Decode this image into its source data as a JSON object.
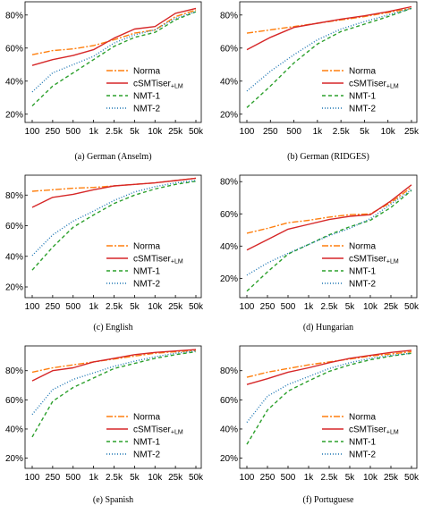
{
  "styles": {
    "Norma": {
      "color": "#ff7f0e",
      "dash": "7 2 2 2",
      "width": 1.4
    },
    "cSMTiser": {
      "color": "#d62728",
      "dash": "",
      "width": 1.4
    },
    "NMT-1": {
      "color": "#2ca02c",
      "dash": "4 3",
      "width": 1.4
    },
    "NMT-2": {
      "color": "#1f77b4",
      "dash": "1 2",
      "width": 1.4
    }
  },
  "chart_data": [
    {
      "type": "line",
      "caption": "(a) German (Anselm)",
      "x": [
        "100",
        "250",
        "500",
        "1k",
        "2.5k",
        "5k",
        "10k",
        "25k",
        "50k"
      ],
      "yticks": [
        "20%",
        "40%",
        "60%",
        "80%"
      ],
      "ylim": [
        15,
        88
      ],
      "legend": [
        "Norma",
        "cSMTiser",
        "NMT-1",
        "NMT-2"
      ],
      "legend_suffix": "+LM",
      "series": [
        {
          "name": "Norma",
          "values": [
            56,
            58.5,
            59.5,
            61.5,
            65,
            69,
            71,
            79,
            83
          ]
        },
        {
          "name": "cSMTiser",
          "values": [
            49.5,
            53,
            55.5,
            59,
            66,
            71.5,
            73,
            81,
            84
          ]
        },
        {
          "name": "NMT-1",
          "values": [
            25,
            37,
            45,
            53,
            61,
            66.5,
            69.5,
            77,
            82
          ]
        },
        {
          "name": "NMT-2",
          "values": [
            33.5,
            45,
            50,
            55,
            63,
            68,
            71,
            78,
            82
          ]
        }
      ]
    },
    {
      "type": "line",
      "caption": "(b) German (RIDGES)",
      "x": [
        "100",
        "250",
        "500",
        "1k",
        "2.5k",
        "5k",
        "10k",
        "25k"
      ],
      "yticks": [
        "20%",
        "40%",
        "60%",
        "80%"
      ],
      "ylim": [
        15,
        88
      ],
      "legend": [
        "Norma",
        "cSMTiser",
        "NMT-1",
        "NMT-2"
      ],
      "legend_suffix": "+LM",
      "series": [
        {
          "name": "Norma",
          "values": [
            69,
            71,
            73,
            75,
            77,
            79,
            81.5,
            84
          ]
        },
        {
          "name": "cSMTiser",
          "values": [
            59,
            66.5,
            72.5,
            75,
            77.5,
            79.5,
            82,
            85
          ]
        },
        {
          "name": "NMT-1",
          "values": [
            24,
            37,
            51,
            62.5,
            70,
            74.5,
            79,
            84
          ]
        },
        {
          "name": "NMT-2",
          "values": [
            34,
            46,
            56,
            65,
            71.5,
            76,
            80,
            84
          ]
        }
      ]
    },
    {
      "type": "line",
      "caption": "(c) English",
      "x": [
        "100",
        "250",
        "500",
        "1k",
        "2.5k",
        "5k",
        "10k",
        "25k",
        "50k"
      ],
      "yticks": [
        "20%",
        "40%",
        "60%",
        "80%"
      ],
      "ylim": [
        13,
        93
      ],
      "legend": [
        "Norma",
        "cSMTiser",
        "NMT-1",
        "NMT-2"
      ],
      "legend_suffix": "+LM",
      "series": [
        {
          "name": "Norma",
          "values": [
            82.5,
            83.5,
            84.5,
            85,
            86,
            87,
            88,
            89.5,
            91
          ]
        },
        {
          "name": "cSMTiser",
          "values": [
            72,
            78.5,
            80.5,
            83.5,
            86,
            87,
            88,
            89.5,
            91
          ]
        },
        {
          "name": "NMT-1",
          "values": [
            31,
            46,
            59,
            67,
            74.5,
            80,
            84,
            87,
            89
          ]
        },
        {
          "name": "NMT-2",
          "values": [
            40.5,
            54,
            63,
            69.5,
            76.5,
            82,
            85.5,
            88,
            89.5
          ]
        }
      ]
    },
    {
      "type": "line",
      "caption": "(d) Hungarian",
      "x": [
        "100",
        "250",
        "500",
        "1k",
        "2.5k",
        "5k",
        "10k",
        "25k",
        "50k"
      ],
      "yticks": [
        "20%",
        "40%",
        "60%",
        "80%"
      ],
      "ylim": [
        8,
        84
      ],
      "legend": [
        "Norma",
        "cSMTiser",
        "NMT-1",
        "NMT-2"
      ],
      "legend_suffix": "+LM",
      "series": [
        {
          "name": "Norma",
          "values": [
            48,
            51,
            54.5,
            56,
            58,
            59.5,
            60,
            67,
            76.5
          ]
        },
        {
          "name": "cSMTiser",
          "values": [
            37.5,
            44,
            50.5,
            53.5,
            56.5,
            58.5,
            59.5,
            68,
            78
          ]
        },
        {
          "name": "NMT-1",
          "values": [
            12,
            24,
            35,
            41,
            47,
            52,
            56,
            64,
            74.5
          ]
        },
        {
          "name": "NMT-2",
          "values": [
            22,
            29.5,
            35.5,
            41,
            46.5,
            51,
            57,
            66,
            75
          ]
        }
      ]
    },
    {
      "type": "line",
      "caption": "(e) Spanish",
      "x": [
        "100",
        "250",
        "500",
        "1k",
        "2.5k",
        "5k",
        "10k",
        "25k",
        "50k"
      ],
      "yticks": [
        "20%",
        "40%",
        "60%",
        "80%"
      ],
      "ylim": [
        13,
        97
      ],
      "legend": [
        "Norma",
        "cSMTiser",
        "NMT-1",
        "NMT-2"
      ],
      "legend_suffix": "+LM",
      "series": [
        {
          "name": "Norma",
          "values": [
            79,
            82,
            84,
            86,
            88,
            90,
            92,
            93,
            94
          ]
        },
        {
          "name": "cSMTiser",
          "values": [
            73,
            80,
            82,
            86,
            88.5,
            91,
            92.5,
            93.5,
            94.5
          ]
        },
        {
          "name": "NMT-1",
          "values": [
            34.5,
            59,
            68.5,
            75,
            81.5,
            85,
            88.5,
            91,
            93
          ]
        },
        {
          "name": "NMT-2",
          "values": [
            50,
            67,
            74,
            78.5,
            83,
            86.5,
            89.5,
            92,
            93.5
          ]
        }
      ]
    },
    {
      "type": "line",
      "caption": "(f) Portuguese",
      "x": [
        "100",
        "250",
        "500",
        "1k",
        "2.5k",
        "5k",
        "10k",
        "25k",
        "50k"
      ],
      "yticks": [
        "20%",
        "40%",
        "60%",
        "80%"
      ],
      "ylim": [
        13,
        97
      ],
      "legend": [
        "Norma",
        "cSMTiser",
        "NMT-1",
        "NMT-2"
      ],
      "legend_suffix": "+LM",
      "series": [
        {
          "name": "Norma",
          "values": [
            75.5,
            79,
            81.5,
            84,
            86,
            88,
            90,
            91.5,
            93
          ]
        },
        {
          "name": "cSMTiser",
          "values": [
            70.5,
            74.5,
            79,
            82,
            85.5,
            88.5,
            90.5,
            92.5,
            94
          ]
        },
        {
          "name": "NMT-1",
          "values": [
            29.5,
            53,
            66,
            73,
            79.5,
            84,
            87.5,
            90,
            92
          ]
        },
        {
          "name": "NMT-2",
          "values": [
            44.5,
            62.5,
            70.5,
            76,
            81.5,
            85.5,
            88.5,
            90.5,
            92
          ]
        }
      ]
    }
  ]
}
